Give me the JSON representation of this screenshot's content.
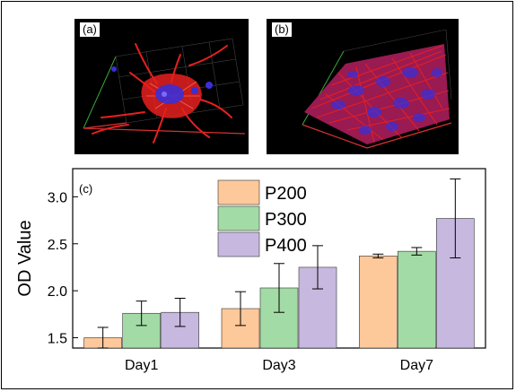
{
  "panels": {
    "a": {
      "label": "(a)"
    },
    "b": {
      "label": "(b)"
    },
    "c": {
      "label": "(c)"
    }
  },
  "colors": {
    "P200": "#fdc89a",
    "P300": "#a3dba6",
    "P400": "#c7b8e0",
    "actin": "#e8201f",
    "nuclei": "#3a2fd6",
    "box_x": "#d83030",
    "box_y": "#3aa83a"
  },
  "chart_data": {
    "type": "bar",
    "categories": [
      "Day1",
      "Day3",
      "Day7"
    ],
    "series": [
      {
        "name": "P200",
        "values": [
          1.5,
          1.81,
          2.37
        ],
        "errors": [
          0.11,
          0.18,
          0.02
        ]
      },
      {
        "name": "P300",
        "values": [
          1.76,
          2.03,
          2.42
        ],
        "errors": [
          0.13,
          0.26,
          0.04
        ]
      },
      {
        "name": "P400",
        "values": [
          1.77,
          2.25,
          2.77
        ],
        "errors": [
          0.15,
          0.23,
          0.42
        ]
      }
    ],
    "ylabel": "OD Value",
    "xlabel": "",
    "ylim": [
      1.39,
      3.3
    ],
    "yticks": [
      1.5,
      2.0,
      2.5,
      3.0
    ],
    "ytick_labels": [
      "1.5",
      "2.0",
      "2.5",
      "3.0"
    ],
    "legend": "top-left",
    "grid": false
  }
}
